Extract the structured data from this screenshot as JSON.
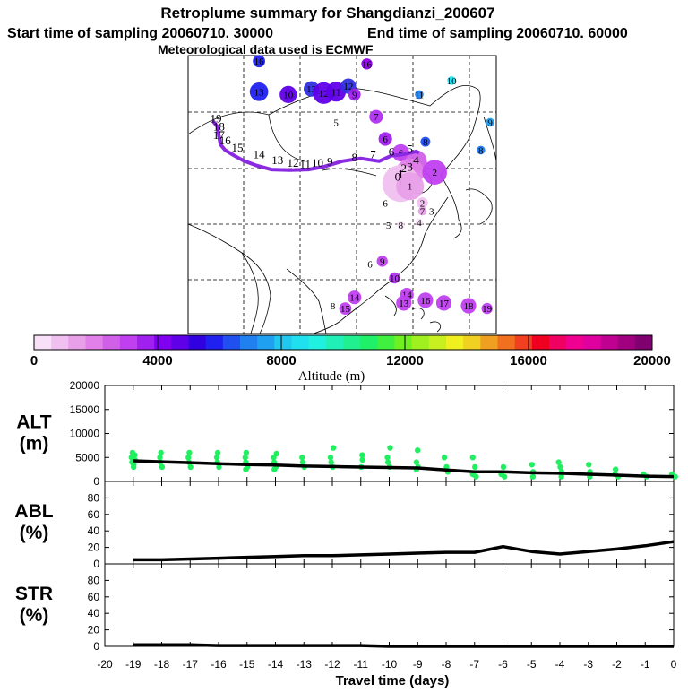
{
  "header": {
    "title": "Retroplume summary for Shangdianzi_200607",
    "start_label": "Start time of sampling 20060710. 30000",
    "end_label": "End time of sampling 20060710. 60000",
    "met_label": "Meteorological data used is ECMWF"
  },
  "colorbar": {
    "colors": [
      "#f8e0f8",
      "#f0c0f0",
      "#e8a0e8",
      "#e080e8",
      "#d060e8",
      "#c040f0",
      "#a020f0",
      "#8000f0",
      "#6000e8",
      "#3000e0",
      "#2020f0",
      "#2050f0",
      "#2080f0",
      "#20a0f0",
      "#20c8f0",
      "#20e0f0",
      "#20f0e0",
      "#20f0b8",
      "#20f090",
      "#20f068",
      "#40f040",
      "#70f020",
      "#a0f020",
      "#c8f020",
      "#f0f020",
      "#f0d020",
      "#f0a020",
      "#f07020",
      "#f04020",
      "#f00020",
      "#f00060",
      "#f00090",
      "#e000a0",
      "#c00090",
      "#a00080",
      "#800070"
    ],
    "tick_labels": [
      "0",
      "4000",
      "8000",
      "12000",
      "16000",
      "20000"
    ],
    "label": "Altitude (m)"
  },
  "chart_data": [
    {
      "type": "map",
      "name": "retroplume-map",
      "trajectory_color": "#8a2be2",
      "trajectory": [
        [
          -19,
          0.08,
          0.235
        ],
        [
          -18,
          0.095,
          0.255
        ],
        [
          -17,
          0.1,
          0.29
        ],
        [
          -16,
          0.105,
          0.32
        ],
        [
          -15,
          0.12,
          0.34
        ],
        [
          -14,
          0.15,
          0.36
        ],
        [
          -13,
          0.18,
          0.378
        ],
        [
          -12,
          0.22,
          0.395
        ],
        [
          -11,
          0.27,
          0.41
        ],
        [
          -10,
          0.33,
          0.412
        ],
        [
          -9,
          0.39,
          0.41
        ],
        [
          -8,
          0.44,
          0.4
        ],
        [
          -7,
          0.5,
          0.38
        ],
        [
          -6,
          0.56,
          0.37
        ],
        [
          -5,
          0.62,
          0.38
        ],
        [
          -4,
          0.66,
          0.36
        ],
        [
          -3,
          0.7,
          0.355
        ],
        [
          -2,
          0.72,
          0.35
        ],
        [
          -1,
          0.74,
          0.345
        ],
        [
          0,
          0.75,
          0.35
        ]
      ],
      "plume_points": [
        {
          "label": "16",
          "lx": 0.23,
          "ly": 0.02,
          "color": "#2020f0",
          "r": 0.02
        },
        {
          "label": "16",
          "lx": 0.58,
          "ly": 0.03,
          "color": "#9000e8",
          "r": 0.018
        },
        {
          "label": "13",
          "lx": 0.23,
          "ly": 0.13,
          "color": "#2020f0",
          "r": 0.03
        },
        {
          "label": "10",
          "lx": 0.325,
          "ly": 0.14,
          "color": "#6000e8",
          "r": 0.028
        },
        {
          "label": "13",
          "lx": 0.4,
          "ly": 0.12,
          "color": "#3030e0",
          "r": 0.025
        },
        {
          "label": "12",
          "lx": 0.44,
          "ly": 0.135,
          "color": "#6000e8",
          "r": 0.035
        },
        {
          "label": "11",
          "lx": 0.48,
          "ly": 0.13,
          "color": "#6000e8",
          "r": 0.032
        },
        {
          "label": "12",
          "lx": 0.52,
          "ly": 0.11,
          "color": "#3030e0",
          "r": 0.025
        },
        {
          "label": "9",
          "lx": 0.54,
          "ly": 0.14,
          "color": "#a020f0",
          "r": 0.02
        },
        {
          "label": "10",
          "lx": 0.855,
          "ly": 0.09,
          "color": "#20e0f0",
          "r": 0.014
        },
        {
          "label": "11",
          "lx": 0.75,
          "ly": 0.14,
          "color": "#2080f0",
          "r": 0.014
        },
        {
          "label": "7",
          "lx": 0.61,
          "ly": 0.22,
          "color": "#b030f0",
          "r": 0.022
        },
        {
          "label": "5",
          "lx": 0.48,
          "ly": 0.24,
          "color": "#ffffff",
          "r": 0.0
        },
        {
          "label": "9",
          "lx": 0.98,
          "ly": 0.24,
          "color": "#20a0f0",
          "r": 0.014
        },
        {
          "label": "6",
          "lx": 0.64,
          "ly": 0.3,
          "color": "#a020f0",
          "r": 0.022
        },
        {
          "label": "8",
          "lx": 0.77,
          "ly": 0.31,
          "color": "#2050f0",
          "r": 0.016
        },
        {
          "label": "8",
          "lx": 0.95,
          "ly": 0.34,
          "color": "#2080f0",
          "r": 0.014
        },
        {
          "label": "6",
          "lx": 0.69,
          "ly": 0.35,
          "color": "#c040f0",
          "r": 0.028
        },
        {
          "label": "4",
          "lx": 0.74,
          "ly": 0.38,
          "color": "#d060e8",
          "r": 0.035
        },
        {
          "label": "3",
          "lx": 0.72,
          "ly": 0.42,
          "color": "#e080e8",
          "r": 0.045
        },
        {
          "label": "2",
          "lx": 0.8,
          "ly": 0.42,
          "color": "#c040f0",
          "r": 0.04
        },
        {
          "label": "1",
          "lx": 0.69,
          "ly": 0.46,
          "color": "#f0c0f0",
          "r": 0.06
        },
        {
          "label": "1",
          "lx": 0.72,
          "ly": 0.47,
          "color": "#e8a0e8",
          "r": 0.045
        },
        {
          "label": "6",
          "lx": 0.64,
          "ly": 0.53,
          "color": "#ffffff",
          "r": 0.0
        },
        {
          "label": "2",
          "lx": 0.76,
          "ly": 0.53,
          "color": "#f0c0f0",
          "r": 0.018
        },
        {
          "label": "7",
          "lx": 0.76,
          "ly": 0.56,
          "color": "#e8a0e8",
          "r": 0.014
        },
        {
          "label": "3",
          "lx": 0.79,
          "ly": 0.56,
          "color": "#ffffff",
          "r": 0.0
        },
        {
          "label": "4",
          "lx": 0.75,
          "ly": 0.6,
          "color": "#f8e0f8",
          "r": 0.012
        },
        {
          "label": "5",
          "lx": 0.65,
          "ly": 0.61,
          "color": "#ffffff",
          "r": 0.0
        },
        {
          "label": "8",
          "lx": 0.69,
          "ly": 0.61,
          "color": "#f8e0f8",
          "r": 0.012
        },
        {
          "label": "9",
          "lx": 0.63,
          "ly": 0.74,
          "color": "#c040f0",
          "r": 0.018
        },
        {
          "label": "6",
          "lx": 0.59,
          "ly": 0.75,
          "color": "#ffffff",
          "r": 0.0
        },
        {
          "label": "10",
          "lx": 0.67,
          "ly": 0.8,
          "color": "#b030f0",
          "r": 0.018
        },
        {
          "label": "14",
          "lx": 0.54,
          "ly": 0.87,
          "color": "#c040f0",
          "r": 0.022
        },
        {
          "label": "14",
          "lx": 0.71,
          "ly": 0.86,
          "color": "#c040f0",
          "r": 0.022
        },
        {
          "label": "16",
          "lx": 0.77,
          "ly": 0.88,
          "color": "#c040f0",
          "r": 0.025
        },
        {
          "label": "17",
          "lx": 0.83,
          "ly": 0.89,
          "color": "#c040f0",
          "r": 0.025
        },
        {
          "label": "18",
          "lx": 0.91,
          "ly": 0.9,
          "color": "#c040f0",
          "r": 0.025
        },
        {
          "label": "13",
          "lx": 0.7,
          "ly": 0.89,
          "color": "#c040f0",
          "r": 0.025
        },
        {
          "label": "15",
          "lx": 0.51,
          "ly": 0.91,
          "color": "#c040f0",
          "r": 0.02
        },
        {
          "label": "19",
          "lx": 0.97,
          "ly": 0.91,
          "color": "#c040f0",
          "r": 0.018
        },
        {
          "label": "8",
          "lx": 0.47,
          "ly": 0.9,
          "color": "#ffffff",
          "r": 0.0
        }
      ],
      "trajectory_labels": [
        {
          "label": "19",
          "lx": 0.09,
          "ly": 0.24
        },
        {
          "label": "18",
          "lx": 0.1,
          "ly": 0.27
        },
        {
          "label": "17",
          "lx": 0.1,
          "ly": 0.3
        },
        {
          "label": "16",
          "lx": 0.12,
          "ly": 0.32
        },
        {
          "label": "15",
          "lx": 0.16,
          "ly": 0.345
        },
        {
          "label": "14",
          "lx": 0.23,
          "ly": 0.37
        },
        {
          "label": "13",
          "lx": 0.29,
          "ly": 0.39
        },
        {
          "label": "12",
          "lx": 0.34,
          "ly": 0.4
        },
        {
          "label": "11",
          "lx": 0.38,
          "ly": 0.405
        },
        {
          "label": "10",
          "lx": 0.42,
          "ly": 0.4
        },
        {
          "label": "9",
          "lx": 0.46,
          "ly": 0.395
        },
        {
          "label": "8",
          "lx": 0.54,
          "ly": 0.38
        },
        {
          "label": "7",
          "lx": 0.6,
          "ly": 0.37
        },
        {
          "label": "6",
          "lx": 0.66,
          "ly": 0.36
        },
        {
          "label": "5",
          "lx": 0.72,
          "ly": 0.35
        },
        {
          "label": "4",
          "lx": 0.74,
          "ly": 0.39
        },
        {
          "label": "3",
          "lx": 0.72,
          "ly": 0.415
        },
        {
          "label": "2",
          "lx": 0.7,
          "ly": 0.42
        },
        {
          "label": "1",
          "lx": 0.69,
          "ly": 0.44
        },
        {
          "label": "0",
          "lx": 0.68,
          "ly": 0.45
        }
      ]
    },
    {
      "type": "line",
      "name": "alt-panel",
      "ylabel_line1": "ALT",
      "ylabel_line2": "(m)",
      "ylim": [
        0,
        20000
      ],
      "ytick_labels": [
        "0",
        "5000",
        "10000",
        "15000",
        "20000"
      ],
      "yticks": [
        0,
        5000,
        10000,
        15000,
        20000
      ],
      "x": [
        -19,
        -18,
        -17,
        -16,
        -15,
        -14,
        -13,
        -12,
        -11,
        -10,
        -9,
        -8,
        -7,
        -6,
        -5,
        -4,
        -3,
        -2,
        -1,
        0
      ],
      "values": [
        4300,
        4100,
        3900,
        3700,
        3500,
        3400,
        3200,
        3100,
        3000,
        2900,
        2800,
        2400,
        2000,
        2000,
        1800,
        1700,
        1500,
        1300,
        1100,
        1000
      ],
      "scatter": [
        [
          -19,
          6000
        ],
        [
          -19,
          5500
        ],
        [
          -19,
          5000
        ],
        [
          -19,
          4500
        ],
        [
          -19,
          4000
        ],
        [
          -19,
          3500
        ],
        [
          -19,
          3000
        ],
        [
          -18,
          6000
        ],
        [
          -18,
          5000
        ],
        [
          -18,
          4000
        ],
        [
          -18,
          3000
        ],
        [
          -17,
          6000
        ],
        [
          -17,
          5000
        ],
        [
          -17,
          4000
        ],
        [
          -17,
          3000
        ],
        [
          -16,
          6000
        ],
        [
          -16,
          5000
        ],
        [
          -16,
          4000
        ],
        [
          -16,
          3000
        ],
        [
          -15,
          6000
        ],
        [
          -15,
          5000
        ],
        [
          -15,
          4000
        ],
        [
          -15,
          3000
        ],
        [
          -15,
          2500
        ],
        [
          -14,
          5800
        ],
        [
          -14,
          5000
        ],
        [
          -14,
          4000
        ],
        [
          -14,
          3000
        ],
        [
          -14,
          2500
        ],
        [
          -13,
          5000
        ],
        [
          -13,
          4000
        ],
        [
          -13,
          3000
        ],
        [
          -12,
          7000
        ],
        [
          -12,
          5000
        ],
        [
          -12,
          4000
        ],
        [
          -12,
          3000
        ],
        [
          -11,
          5500
        ],
        [
          -11,
          4500
        ],
        [
          -11,
          3000
        ],
        [
          -10,
          7000
        ],
        [
          -10,
          5000
        ],
        [
          -10,
          4000
        ],
        [
          -10,
          3000
        ],
        [
          -9,
          6500
        ],
        [
          -9,
          4000
        ],
        [
          -9,
          3000
        ],
        [
          -9,
          2500
        ],
        [
          -8,
          5000
        ],
        [
          -8,
          3000
        ],
        [
          -8,
          2000
        ],
        [
          -7,
          5000
        ],
        [
          -7,
          3000
        ],
        [
          -7,
          1500
        ],
        [
          -7,
          1000
        ],
        [
          -6,
          3000
        ],
        [
          -6,
          1500
        ],
        [
          -6,
          1000
        ],
        [
          -5,
          3500
        ],
        [
          -5,
          2000
        ],
        [
          -5,
          1000
        ],
        [
          -4,
          4000
        ],
        [
          -4,
          3000
        ],
        [
          -4,
          2000
        ],
        [
          -4,
          1000
        ],
        [
          -3,
          3500
        ],
        [
          -3,
          2000
        ],
        [
          -3,
          1000
        ],
        [
          -2,
          2500
        ],
        [
          -2,
          1500
        ],
        [
          -2,
          1000
        ],
        [
          -1,
          1500
        ],
        [
          -1,
          1000
        ],
        [
          0,
          1500
        ],
        [
          0,
          1000
        ]
      ],
      "scatter_color": "#20f060"
    },
    {
      "type": "line",
      "name": "abl-panel",
      "ylabel_line1": "ABL",
      "ylabel_line2": "(%)",
      "ylim": [
        0,
        100
      ],
      "ytick_labels": [
        "0",
        "20",
        "40",
        "60",
        "80"
      ],
      "yticks": [
        0,
        20,
        40,
        60,
        80
      ],
      "x": [
        -19,
        -18,
        -17,
        -16,
        -15,
        -14,
        -13,
        -12,
        -11,
        -10,
        -9,
        -8,
        -7,
        -6,
        -5,
        -4,
        -3,
        -2,
        -1,
        0
      ],
      "values": [
        5,
        5,
        6,
        7,
        8,
        9,
        10,
        10,
        11,
        12,
        13,
        14,
        14,
        21,
        15,
        12,
        15,
        18,
        22,
        27
      ]
    },
    {
      "type": "line",
      "name": "str-panel",
      "ylabel_line1": "STR",
      "ylabel_line2": "(%)",
      "ylim": [
        0,
        100
      ],
      "ytick_labels": [
        "0",
        "20",
        "40",
        "60",
        "80"
      ],
      "yticks": [
        0,
        20,
        40,
        60,
        80
      ],
      "x": [
        -19,
        -18,
        -17,
        -16,
        -15,
        -14,
        -13,
        -12,
        -11,
        -10,
        -9,
        -8,
        -7,
        -6,
        -5,
        -4,
        -3,
        -2,
        -1,
        0
      ],
      "values": [
        2,
        2,
        2,
        1,
        1,
        1,
        1,
        1,
        1,
        0,
        0,
        0,
        0,
        0,
        0,
        0,
        0,
        0,
        0,
        0
      ]
    }
  ],
  "xaxis": {
    "label": "Travel time (days)",
    "ticks": [
      -20,
      -19,
      -18,
      -17,
      -16,
      -15,
      -14,
      -13,
      -12,
      -11,
      -10,
      -9,
      -8,
      -7,
      -6,
      -5,
      -4,
      -3,
      -2,
      -1,
      0
    ],
    "tick_labels": [
      "-20",
      "-19",
      "-18",
      "-17",
      "-16",
      "-15",
      "-14",
      "-13",
      "-12",
      "-11",
      "-10",
      "-9",
      "-8",
      "-7",
      "-6",
      "-5",
      "-4",
      "-3",
      "-2",
      "-1",
      "0"
    ]
  }
}
